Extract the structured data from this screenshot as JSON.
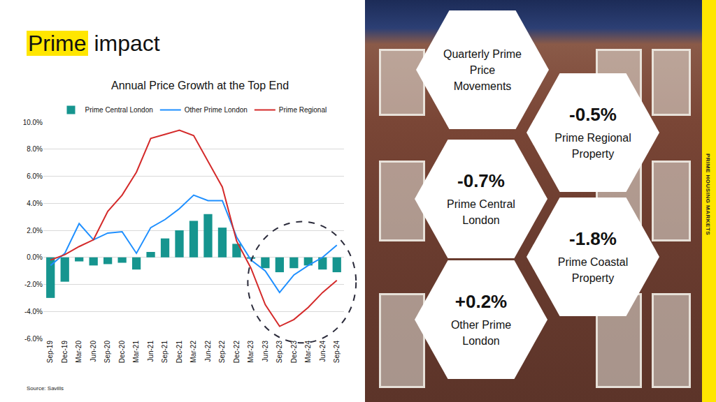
{
  "header": {
    "title_highlight": "Prime",
    "title_rest": "impact"
  },
  "chart_data": {
    "type": "bar",
    "title": "Annual Price Growth at the Top End",
    "categories": [
      "Sep-19",
      "Dec-19",
      "Mar-20",
      "Jun-20",
      "Sep-20",
      "Dec-20",
      "Mar-21",
      "Jun-21",
      "Sep-21",
      "Dec-21",
      "Mar-22",
      "Jun-22",
      "Sep-22",
      "Dec-22",
      "Mar-23",
      "Jun-23",
      "Sep-23",
      "Dec-23",
      "Mar-24",
      "Jun-24",
      "Sep-24"
    ],
    "series": [
      {
        "name": "Prime Central London",
        "type": "bar",
        "color": "#16958f",
        "values": [
          -3.0,
          -1.8,
          -0.3,
          -0.6,
          -0.5,
          -0.4,
          -0.9,
          0.4,
          1.4,
          2.0,
          2.7,
          3.2,
          2.2,
          1.0,
          -0.1,
          -0.8,
          -1.1,
          -0.8,
          -0.6,
          -0.9,
          -1.1
        ]
      },
      {
        "name": "Other Prime London",
        "type": "line",
        "color": "#1e8fff",
        "values": [
          -0.6,
          0.3,
          2.5,
          1.3,
          1.8,
          1.9,
          0.3,
          2.2,
          2.8,
          3.6,
          4.6,
          4.2,
          4.2,
          1.5,
          -0.2,
          -1.0,
          -2.6,
          -1.3,
          -0.6,
          0.0,
          0.9
        ]
      },
      {
        "name": "Prime Regional",
        "type": "line",
        "color": "#d42a2a",
        "values": [
          -0.2,
          0.2,
          0.8,
          1.3,
          3.4,
          4.6,
          6.3,
          8.8,
          9.1,
          9.4,
          9.0,
          7.1,
          5.2,
          1.2,
          -0.8,
          -3.5,
          -5.1,
          -4.6,
          -3.7,
          -2.6,
          -1.7
        ]
      }
    ],
    "ylim": [
      -6,
      10
    ],
    "yticks": [
      {
        "value": -6,
        "label": "-6.0%"
      },
      {
        "value": -4,
        "label": "-4.0%"
      },
      {
        "value": -2,
        "label": "-2.0%"
      },
      {
        "value": 0,
        "label": "0.0%"
      },
      {
        "value": 2,
        "label": "2.0%"
      },
      {
        "value": 4,
        "label": "4.0%"
      },
      {
        "value": 6,
        "label": "6.0%"
      },
      {
        "value": 8,
        "label": "8.0%"
      },
      {
        "value": 10,
        "label": "10.0%"
      }
    ],
    "grid": true,
    "legend": "top"
  },
  "source": "Source: Savills",
  "side_label": "PRIME HOUSING MARKETS",
  "panel": {
    "heading": "Quarterly Prime Price Movements",
    "items": [
      {
        "value": "-0.5%",
        "label": "Prime Regional Property"
      },
      {
        "value": "-0.7%",
        "label": "Prime Central London"
      },
      {
        "value": "-1.8%",
        "label": "Prime Coastal Property"
      },
      {
        "value": "+0.2%",
        "label": "Other Prime London"
      }
    ]
  }
}
